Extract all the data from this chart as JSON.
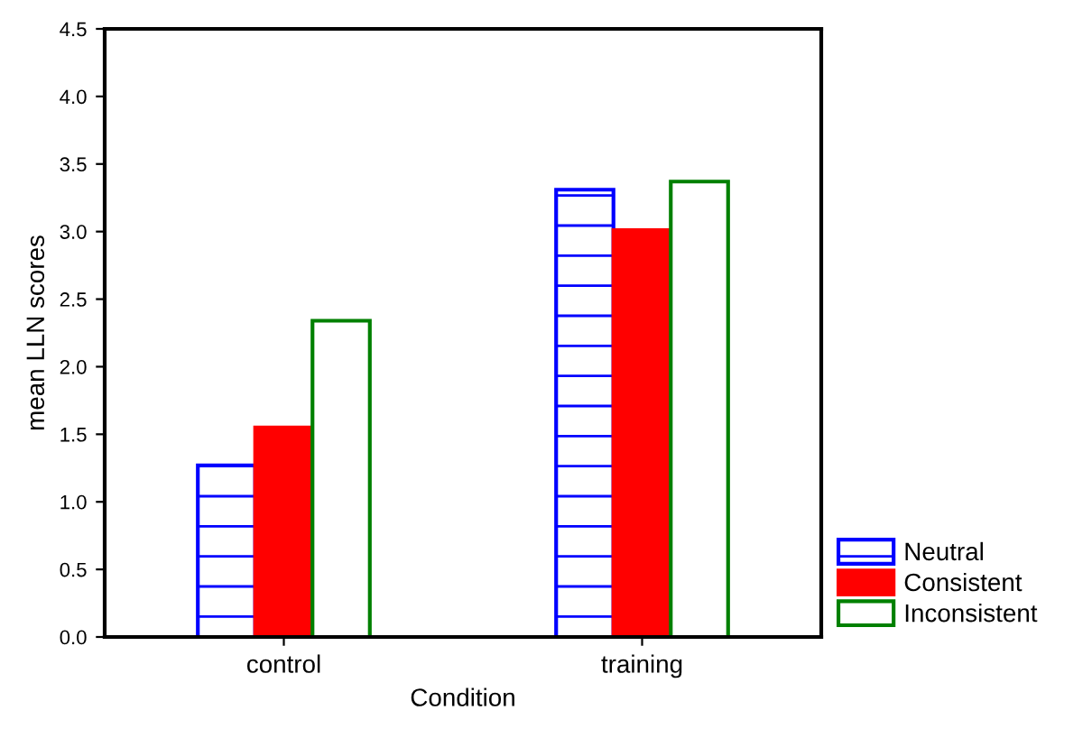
{
  "chart_data": {
    "type": "bar",
    "xlabel": "Condition",
    "ylabel": "mean LLN scores",
    "categories": [
      "control",
      "training"
    ],
    "series": [
      {
        "name": "Neutral",
        "color": "#0000ff",
        "values": [
          1.27,
          3.31
        ]
      },
      {
        "name": "Consistent",
        "color": "#ff0000",
        "values": [
          1.55,
          3.01
        ]
      },
      {
        "name": "Inconsistent",
        "color": "#008000",
        "values": [
          2.34,
          3.37
        ]
      }
    ],
    "ylim": [
      0,
      4.5
    ],
    "yticks": [
      {
        "value": 0,
        "label": "0.0"
      },
      0.5,
      {
        "value": 1,
        "label": "1.0"
      },
      1.5,
      {
        "value": 2,
        "label": "2.0"
      },
      2.5,
      {
        "value": 3,
        "label": "3.0"
      },
      3.5,
      {
        "value": 4,
        "label": "4.0"
      },
      4.5
    ],
    "grid": false,
    "legend": "bottom right"
  }
}
